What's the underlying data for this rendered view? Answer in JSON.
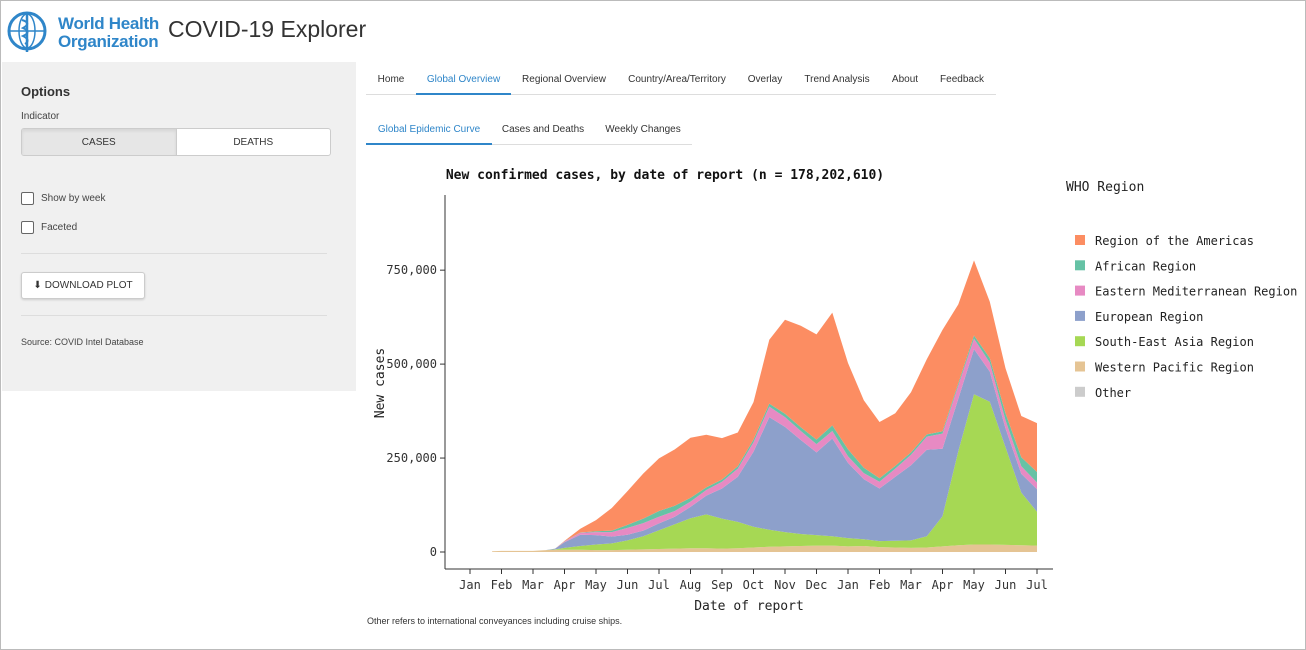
{
  "header": {
    "logo_line1": "World Health",
    "logo_line2": "Organization",
    "app_title": "COVID-19 Explorer"
  },
  "sidebar": {
    "options_title": "Options",
    "indicator_label": "Indicator",
    "toggle": {
      "cases": "CASES",
      "deaths": "DEATHS",
      "selected": "CASES"
    },
    "show_by_week": "Show by week",
    "faceted": "Faceted",
    "download_label": "DOWNLOAD PLOT",
    "source": "Source: COVID Intel Database"
  },
  "nav": {
    "tabs": [
      "Home",
      "Global Overview",
      "Regional Overview",
      "Country/Area/Territory",
      "Overlay",
      "Trend Analysis",
      "About",
      "Feedback"
    ],
    "active": "Global Overview"
  },
  "subnav": {
    "tabs": [
      "Global Epidemic Curve",
      "Cases and Deaths",
      "Weekly Changes"
    ],
    "active": "Global Epidemic Curve"
  },
  "footnote": "Other refers to international conveyances including cruise ships.",
  "colors": {
    "accent": "#2f86c9",
    "americas": "#fc8d62",
    "african": "#66c2a5",
    "emro": "#e78ac3",
    "european": "#8da0cb",
    "searo": "#a6d854",
    "wpro": "#e5c494",
    "other": "#cccccc"
  },
  "chart_data": {
    "type": "area",
    "stacked": true,
    "title": "New confirmed cases, by date of report (n = 178,202,610)",
    "xlabel": "Date of report",
    "ylabel": "New cases",
    "ylim": [
      0,
      950000
    ],
    "yticks": [
      0,
      250000,
      500000,
      750000
    ],
    "ytick_labels": [
      "0",
      "250,000",
      "500,000",
      "750,000"
    ],
    "x_tick_labels": [
      "Jan",
      "Feb",
      "Mar",
      "Apr",
      "May",
      "Jun",
      "Jul",
      "Aug",
      "Sep",
      "Oct",
      "Nov",
      "Dec",
      "Jan",
      "Feb",
      "Mar",
      "Apr",
      "May",
      "Jun",
      "Jul"
    ],
    "x": [
      0.7,
      1.0,
      1.3,
      1.7,
      2.0,
      2.4,
      2.7,
      3.0,
      3.5,
      4.0,
      4.5,
      5.0,
      5.5,
      6.0,
      6.5,
      7.0,
      7.5,
      8.0,
      8.5,
      9.0,
      9.5,
      10.0,
      10.5,
      11.0,
      11.5,
      12.0,
      12.5,
      13.0,
      13.5,
      14.0,
      14.5,
      15.0,
      15.5,
      16.0,
      16.5,
      17.0,
      17.5,
      18.0
    ],
    "legend_title": "WHO Region",
    "legend_position": "right",
    "series": [
      {
        "name": "Western Pacific Region",
        "values": [
          2000,
          3000,
          3000,
          3000,
          3000,
          5000,
          6000,
          6000,
          6000,
          5000,
          5000,
          6000,
          7000,
          8000,
          9000,
          10000,
          10000,
          9000,
          10000,
          12000,
          14000,
          15000,
          16000,
          17000,
          17000,
          15000,
          16000,
          13000,
          12000,
          11000,
          12000,
          15000,
          18000,
          20000,
          20000,
          19000,
          18000,
          17000
        ]
      },
      {
        "name": "South-East Asia Region",
        "values": [
          0,
          0,
          0,
          0,
          0,
          0,
          1000,
          5000,
          10000,
          15000,
          18000,
          25000,
          35000,
          50000,
          65000,
          80000,
          90000,
          80000,
          70000,
          55000,
          45000,
          38000,
          32000,
          28000,
          25000,
          22000,
          18000,
          16000,
          18000,
          20000,
          30000,
          80000,
          250000,
          400000,
          380000,
          260000,
          140000,
          90000
        ]
      },
      {
        "name": "European Region",
        "values": [
          0,
          0,
          0,
          0,
          0,
          0,
          2000,
          15000,
          30000,
          25000,
          18000,
          15000,
          15000,
          18000,
          20000,
          30000,
          50000,
          80000,
          120000,
          200000,
          300000,
          280000,
          250000,
          220000,
          260000,
          200000,
          160000,
          140000,
          170000,
          200000,
          230000,
          180000,
          140000,
          120000,
          80000,
          50000,
          50000,
          60000
        ]
      },
      {
        "name": "Eastern Mediterranean Region",
        "values": [
          0,
          0,
          0,
          0,
          0,
          0,
          0,
          2000,
          5000,
          8000,
          12000,
          18000,
          20000,
          18000,
          15000,
          14000,
          15000,
          18000,
          22000,
          25000,
          28000,
          26000,
          24000,
          22000,
          20000,
          18000,
          16000,
          18000,
          22000,
          28000,
          35000,
          40000,
          35000,
          28000,
          24000,
          22000,
          20000,
          18000
        ]
      },
      {
        "name": "African Region",
        "values": [
          0,
          0,
          0,
          0,
          0,
          0,
          0,
          500,
          1000,
          2000,
          4000,
          8000,
          12000,
          15000,
          14000,
          10000,
          7000,
          6000,
          6000,
          7000,
          8000,
          9000,
          10000,
          12000,
          15000,
          18000,
          14000,
          9000,
          7000,
          6000,
          6000,
          6000,
          6000,
          8000,
          12000,
          18000,
          24000,
          28000
        ]
      },
      {
        "name": "Region of the Americas",
        "values": [
          0,
          0,
          0,
          0,
          0,
          0,
          0,
          1000,
          10000,
          30000,
          60000,
          90000,
          120000,
          140000,
          150000,
          160000,
          140000,
          110000,
          90000,
          100000,
          170000,
          250000,
          270000,
          280000,
          300000,
          230000,
          180000,
          150000,
          140000,
          160000,
          200000,
          270000,
          210000,
          200000,
          150000,
          120000,
          110000,
          130000
        ]
      },
      {
        "name": "Other",
        "values": [
          0,
          0,
          0,
          0,
          0,
          0,
          0,
          0,
          0,
          0,
          0,
          0,
          0,
          0,
          0,
          0,
          0,
          0,
          0,
          0,
          0,
          0,
          0,
          0,
          0,
          0,
          0,
          0,
          0,
          0,
          0,
          0,
          0,
          0,
          0,
          0,
          0,
          0
        ]
      }
    ]
  }
}
